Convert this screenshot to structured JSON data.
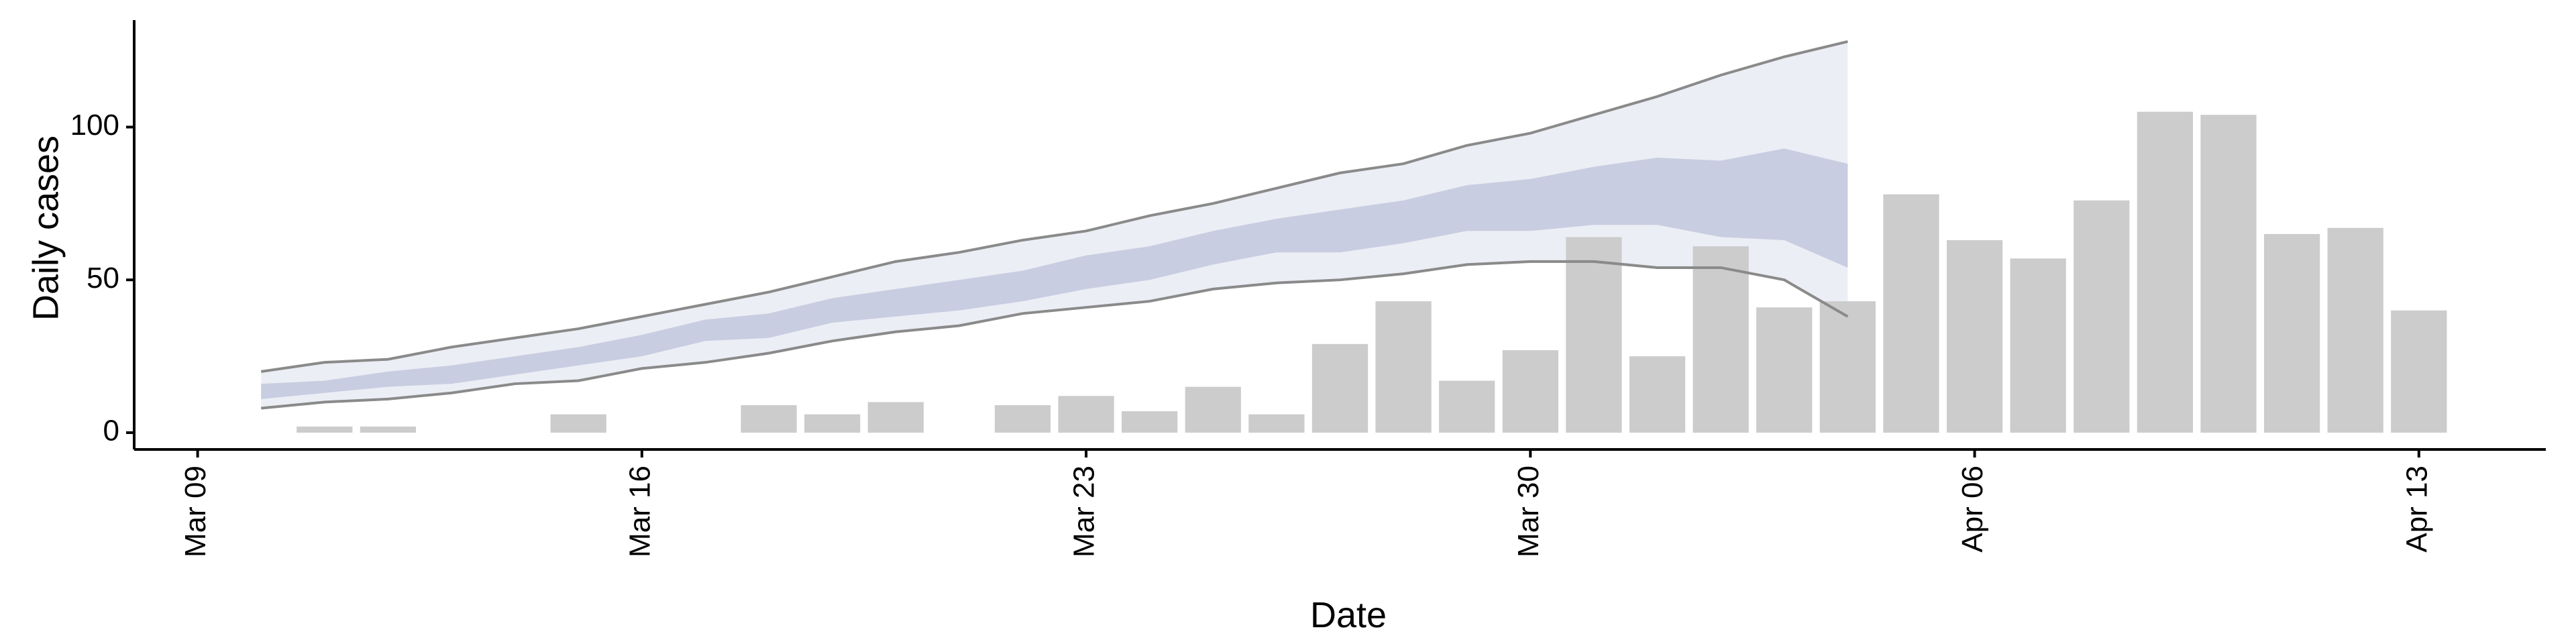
{
  "chart_data": {
    "type": "bar",
    "x_label": "Date",
    "y_label": "Daily cases",
    "x": [
      "03-11",
      "03-12",
      "03-15",
      "03-18",
      "03-19",
      "03-20",
      "03-22",
      "03-23",
      "03-24",
      "03-25",
      "03-26",
      "03-27",
      "03-28",
      "03-29",
      "03-30",
      "03-31",
      "04-01",
      "04-02",
      "04-03",
      "04-04",
      "04-05",
      "04-06",
      "04-07",
      "04-08",
      "04-09",
      "04-10",
      "04-11",
      "04-12",
      "04-13"
    ],
    "values": [
      2,
      2,
      6,
      9,
      6,
      10,
      9,
      12,
      7,
      15,
      6,
      29,
      43,
      17,
      27,
      64,
      25,
      61,
      41,
      43,
      78,
      63,
      57,
      76,
      105,
      104,
      65,
      67,
      40
    ],
    "color": "#cccccc",
    "forecast": {
      "x": [
        "03-10",
        "03-11",
        "03-12",
        "03-13",
        "03-14",
        "03-15",
        "03-16",
        "03-17",
        "03-18",
        "03-19",
        "03-20",
        "03-21",
        "03-22",
        "03-23",
        "03-24",
        "03-25",
        "03-26",
        "03-27",
        "03-28",
        "03-29",
        "03-30",
        "03-31",
        "04-01",
        "04-02",
        "04-03",
        "04-04"
      ],
      "outer": {
        "color": "#eceef5",
        "upper": [
          20,
          23,
          24,
          28,
          31,
          34,
          38,
          42,
          46,
          51,
          56,
          59,
          63,
          66,
          71,
          75,
          80,
          85,
          88,
          94,
          98,
          104,
          110,
          117,
          123,
          128
        ],
        "lower": [
          8,
          10,
          11,
          13,
          16,
          17,
          21,
          23,
          26,
          30,
          33,
          35,
          39,
          41,
          43,
          47,
          49,
          50,
          52,
          55,
          56,
          56,
          54,
          54,
          50,
          38
        ]
      },
      "inner": {
        "color": "#c8cde1",
        "upper": [
          16,
          17,
          20,
          22,
          25,
          28,
          32,
          37,
          39,
          44,
          47,
          50,
          53,
          58,
          61,
          66,
          70,
          73,
          76,
          81,
          83,
          87,
          90,
          89,
          93,
          88
        ],
        "lower": [
          11,
          13,
          15,
          16,
          19,
          22,
          25,
          30,
          31,
          36,
          38,
          40,
          43,
          47,
          50,
          55,
          59,
          59,
          62,
          66,
          66,
          68,
          68,
          64,
          63,
          54
        ]
      },
      "line_color": "#8a8a8a"
    },
    "xlim": [
      "03-08",
      "04-15"
    ],
    "xticks": [
      {
        "value": "03-09",
        "label": "Mar 09"
      },
      {
        "value": "03-16",
        "label": "Mar 16"
      },
      {
        "value": "03-23",
        "label": "Mar 23"
      },
      {
        "value": "03-30",
        "label": "Mar 30"
      },
      {
        "value": "04-06",
        "label": "Apr 06"
      },
      {
        "value": "04-13",
        "label": "Apr 13"
      }
    ],
    "ylim": [
      -5.5,
      135
    ],
    "yticks": [
      0,
      50,
      100
    ]
  }
}
